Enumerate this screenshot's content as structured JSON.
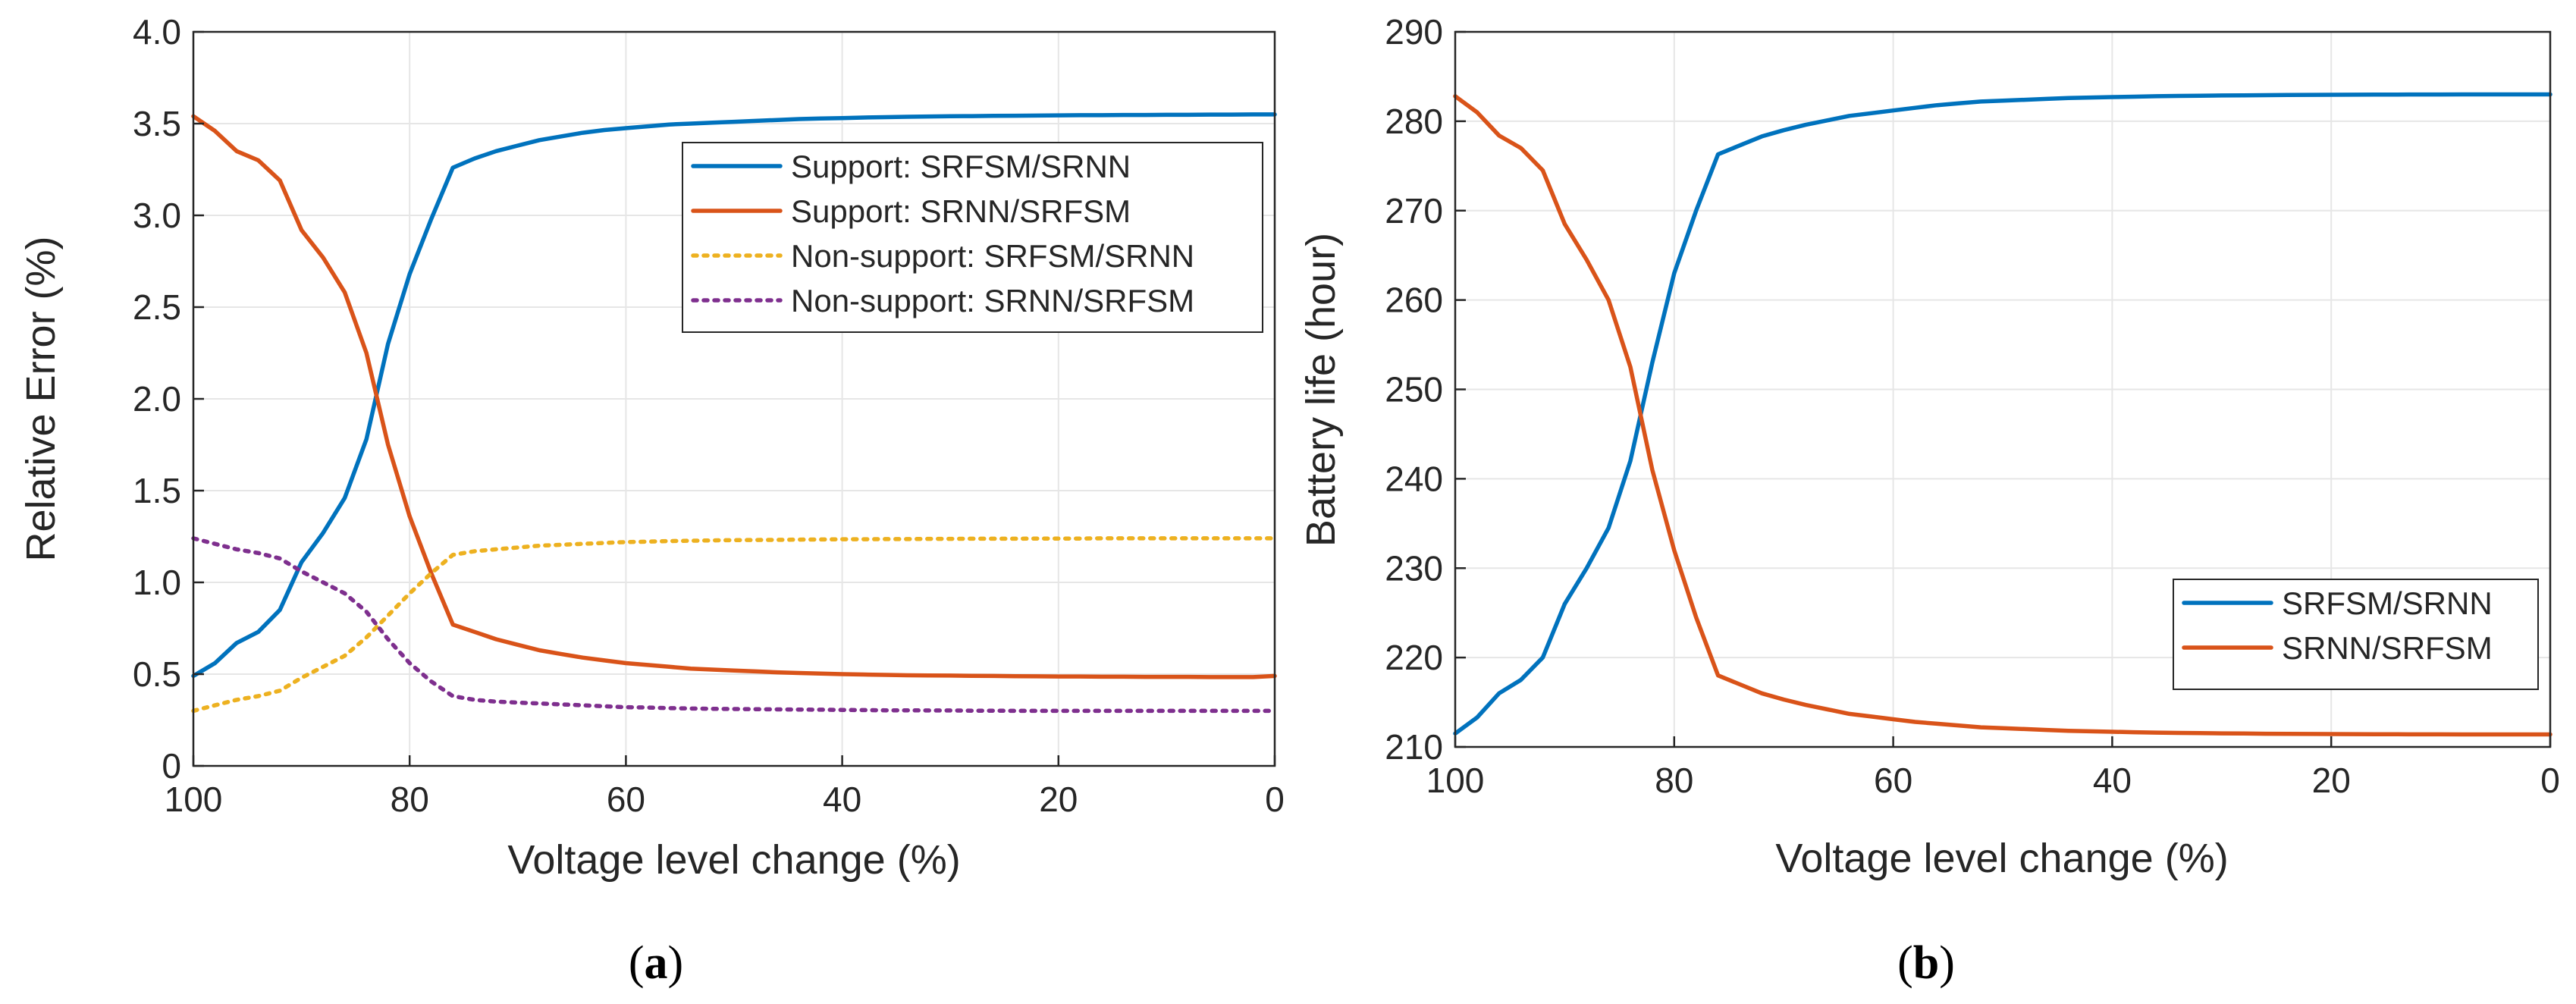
{
  "chart_data": [
    {
      "type": "line",
      "caption": "a",
      "xlabel": "Voltage level change (%)",
      "ylabel": "Relative Error (%)",
      "xlim": [
        100,
        0
      ],
      "ylim": [
        0,
        4
      ],
      "xticks": [
        100,
        80,
        60,
        40,
        20,
        0
      ],
      "yticks": [
        0,
        0.5,
        1,
        1.5,
        2,
        2.5,
        3,
        3.5,
        4
      ],
      "ytick_labels": [
        "0",
        "0.5",
        "1.0",
        "1.5",
        "2.0",
        "2.5",
        "3.0",
        "3.5",
        "4.0"
      ],
      "grid": true,
      "legend_position": "top-right",
      "x": [
        100,
        98,
        96,
        94,
        92,
        90,
        88,
        86,
        84,
        82,
        80,
        78,
        76,
        74,
        72,
        70,
        68,
        66,
        64,
        62,
        60,
        58,
        56,
        54,
        52,
        50,
        48,
        46,
        44,
        42,
        40,
        38,
        36,
        34,
        32,
        30,
        28,
        26,
        24,
        22,
        20,
        18,
        16,
        14,
        12,
        10,
        8,
        6,
        4,
        2,
        0
      ],
      "series": [
        {
          "name": "Support: SRFSM/SRNN",
          "color": "#0072BD",
          "dash": "solid",
          "values": [
            0.49,
            0.56,
            0.67,
            0.73,
            0.85,
            1.11,
            1.27,
            1.46,
            1.78,
            2.3,
            2.68,
            2.98,
            3.26,
            3.31,
            3.35,
            3.38,
            3.41,
            3.43,
            3.45,
            3.465,
            3.475,
            3.485,
            3.495,
            3.5,
            3.505,
            3.51,
            3.515,
            3.52,
            3.525,
            3.528,
            3.53,
            3.533,
            3.535,
            3.537,
            3.539,
            3.54,
            3.541,
            3.542,
            3.543,
            3.544,
            3.545,
            3.546,
            3.546,
            3.547,
            3.547,
            3.548,
            3.548,
            3.549,
            3.549,
            3.55,
            3.55
          ]
        },
        {
          "name": "Support: SRNN/SRFSM",
          "color": "#D95319",
          "dash": "solid",
          "values": [
            3.54,
            3.46,
            3.35,
            3.3,
            3.19,
            2.92,
            2.77,
            2.58,
            2.25,
            1.75,
            1.36,
            1.05,
            0.77,
            0.73,
            0.69,
            0.66,
            0.63,
            0.61,
            0.59,
            0.575,
            0.56,
            0.55,
            0.54,
            0.53,
            0.525,
            0.52,
            0.515,
            0.51,
            0.506,
            0.503,
            0.5,
            0.498,
            0.496,
            0.494,
            0.493,
            0.492,
            0.491,
            0.49,
            0.489,
            0.488,
            0.487,
            0.487,
            0.486,
            0.486,
            0.485,
            0.485,
            0.485,
            0.484,
            0.484,
            0.484,
            0.49
          ]
        },
        {
          "name": "Non-support: SRFSM/SRNN",
          "color": "#EDB120",
          "dash": "dotted",
          "values": [
            0.3,
            0.33,
            0.36,
            0.38,
            0.41,
            0.48,
            0.54,
            0.6,
            0.7,
            0.82,
            0.94,
            1.05,
            1.15,
            1.17,
            1.18,
            1.19,
            1.2,
            1.205,
            1.21,
            1.215,
            1.22,
            1.222,
            1.225,
            1.227,
            1.229,
            1.23,
            1.231,
            1.232,
            1.233,
            1.234,
            1.235,
            1.235,
            1.236,
            1.236,
            1.237,
            1.237,
            1.238,
            1.238,
            1.238,
            1.239,
            1.239,
            1.239,
            1.24,
            1.24,
            1.24,
            1.24,
            1.24,
            1.24,
            1.24,
            1.24,
            1.24
          ]
        },
        {
          "name": "Non-support: SRNN/SRFSM",
          "color": "#7E2F8E",
          "dash": "dotted",
          "values": [
            1.24,
            1.21,
            1.18,
            1.16,
            1.13,
            1.06,
            1.0,
            0.94,
            0.84,
            0.69,
            0.56,
            0.46,
            0.38,
            0.36,
            0.35,
            0.345,
            0.34,
            0.335,
            0.33,
            0.325,
            0.32,
            0.318,
            0.315,
            0.313,
            0.311,
            0.31,
            0.309,
            0.308,
            0.307,
            0.306,
            0.305,
            0.304,
            0.303,
            0.303,
            0.302,
            0.302,
            0.301,
            0.301,
            0.3,
            0.3,
            0.3,
            0.3,
            0.3,
            0.3,
            0.3,
            0.3,
            0.3,
            0.3,
            0.3,
            0.3,
            0.3
          ]
        }
      ]
    },
    {
      "type": "line",
      "caption": "b",
      "xlabel": "Voltage level change (%)",
      "ylabel": "Battery life (hour)",
      "xlim": [
        100,
        0
      ],
      "ylim": [
        210,
        290
      ],
      "xticks": [
        100,
        80,
        60,
        40,
        20,
        0
      ],
      "yticks": [
        210,
        220,
        230,
        240,
        250,
        260,
        270,
        280,
        290
      ],
      "ytick_labels": [
        "210",
        "220",
        "230",
        "240",
        "250",
        "260",
        "270",
        "280",
        "290"
      ],
      "grid": true,
      "legend_position": "bottom-right",
      "x": [
        100,
        98,
        96,
        94,
        92,
        90,
        88,
        86,
        84,
        82,
        80,
        78,
        76,
        74,
        72,
        70,
        68,
        66,
        64,
        62,
        60,
        58,
        56,
        54,
        52,
        50,
        48,
        46,
        44,
        42,
        40,
        38,
        36,
        34,
        32,
        30,
        28,
        26,
        24,
        22,
        20,
        18,
        16,
        14,
        12,
        10,
        8,
        6,
        4,
        2,
        0
      ],
      "series": [
        {
          "name": "SRFSM/SRNN",
          "color": "#0072BD",
          "dash": "solid",
          "values": [
            211.5,
            213.3,
            216.0,
            217.5,
            220.0,
            226.0,
            230.0,
            234.5,
            242.0,
            253.0,
            263.0,
            270.0,
            276.3,
            277.3,
            278.3,
            279.0,
            279.6,
            280.1,
            280.6,
            280.9,
            281.2,
            281.5,
            281.8,
            282.0,
            282.2,
            282.3,
            282.4,
            282.5,
            282.6,
            282.65,
            282.7,
            282.75,
            282.8,
            282.83,
            282.86,
            282.88,
            282.9,
            282.92,
            282.94,
            282.95,
            282.96,
            282.97,
            282.98,
            282.98,
            282.99,
            282.99,
            283.0,
            283.0,
            283.0,
            283.0,
            283.0
          ]
        },
        {
          "name": "SRNN/SRFSM",
          "color": "#D95319",
          "dash": "solid",
          "values": [
            282.8,
            281.0,
            278.4,
            277.0,
            274.5,
            268.5,
            264.5,
            260.0,
            252.5,
            241.0,
            232.0,
            224.5,
            218.0,
            217.0,
            216.0,
            215.3,
            214.7,
            214.2,
            213.7,
            213.4,
            213.1,
            212.8,
            212.6,
            212.4,
            212.2,
            212.1,
            212.0,
            211.9,
            211.8,
            211.75,
            211.7,
            211.65,
            211.6,
            211.57,
            211.54,
            211.52,
            211.5,
            211.48,
            211.46,
            211.45,
            211.44,
            211.43,
            211.42,
            211.42,
            211.41,
            211.41,
            211.4,
            211.4,
            211.4,
            211.4,
            211.4
          ]
        }
      ]
    }
  ]
}
